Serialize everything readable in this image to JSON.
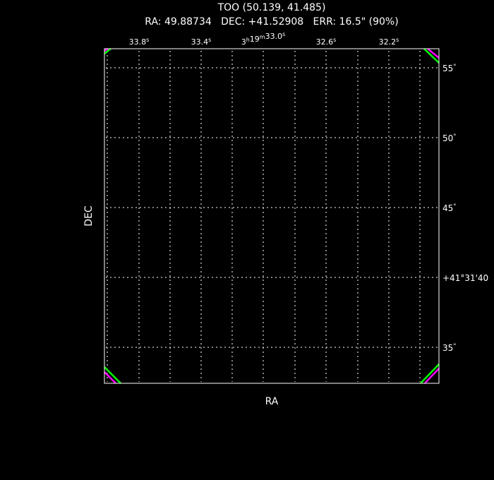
{
  "title": "TOO (50.139, 41.485)",
  "subtitle": "RA: 49.88734   DEC: +41.52908   ERR: 16.5\" (90%)",
  "xlabel": "RA",
  "ylabel": "DEC",
  "ra_ticks": [
    {
      "main": "33.8",
      "sup": "s"
    },
    {
      "main": "33.4",
      "sup": "s"
    },
    {
      "pre": "3",
      "presup": "h",
      "mid": "19",
      "midsup": "m",
      "main": "33.0",
      "sup": "s"
    },
    {
      "main": "32.6",
      "sup": "s"
    },
    {
      "main": "32.2",
      "sup": "s"
    }
  ],
  "dec_ticks": [
    {
      "main": "55",
      "sup": "\""
    },
    {
      "main": "50",
      "sup": "\""
    },
    {
      "main": "45",
      "sup": "\""
    },
    {
      "main": "+41°31'40",
      "sup": ""
    },
    {
      "main": "35",
      "sup": "\""
    }
  ],
  "colors": {
    "frame": "#ffffff",
    "grid": "#ffffff",
    "error_circle_inner": "#00ff00",
    "error_circle_outer": "#ff00ff"
  }
}
